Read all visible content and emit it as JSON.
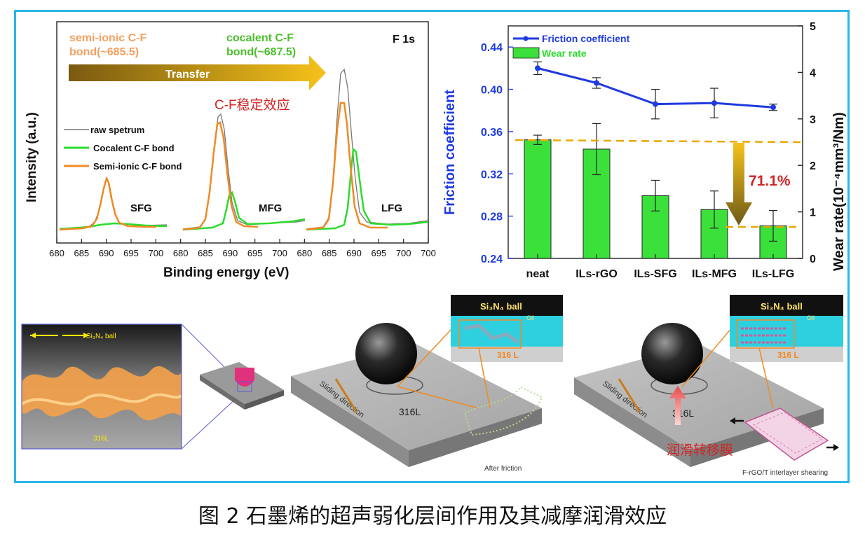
{
  "caption": "图 2 石墨烯的超声弱化层间作用及其减摩润滑效应",
  "colors": {
    "frame": "#29b6e3",
    "orange": "#f08a24",
    "green": "#2bdc2b",
    "blue": "#1f3be0",
    "red": "#d42424",
    "gold": "#e0a800"
  },
  "xps": {
    "title": "F 1s",
    "semi_ionic_label": "semi-ionic C-F",
    "semi_ionic_label2": "bond(~685.5)",
    "covalent_label": "cocalent C-F",
    "covalent_label2": "bond(~687.5)",
    "arrow_label": "Transfer",
    "effect_label": "C-F稳定效应",
    "legend": [
      "raw spetrum",
      "Cocalent C-F bond",
      "Semi-ionic C-F bond"
    ],
    "samples": [
      "SFG",
      "MFG",
      "LFG"
    ],
    "xlabel": "Binding energy (eV)",
    "ylabel": "Intensity (a.u.)",
    "ticks": [
      "680",
      "685",
      "690",
      "695",
      "700",
      "680",
      "685",
      "690",
      "695",
      "700",
      "680",
      "685",
      "690",
      "695",
      "700"
    ]
  },
  "chart_data": {
    "type": "bar",
    "categories": [
      "neat",
      "ILs-rGO",
      "ILs-SFG",
      "ILs-MFG",
      "ILs-LFG"
    ],
    "series": [
      {
        "name": "Friction coefficient",
        "type": "line",
        "values": [
          0.42,
          0.406,
          0.386,
          0.387,
          0.383
        ],
        "errors": [
          0.006,
          0.005,
          0.014,
          0.014,
          0.003
        ]
      },
      {
        "name": "Wear rate",
        "type": "bar",
        "values": [
          2.55,
          2.35,
          1.35,
          1.05,
          0.7
        ],
        "errors": [
          0.1,
          0.55,
          0.33,
          0.4,
          0.33
        ]
      }
    ],
    "ylabel": "Friction coefficient",
    "y2label": "Wear rate(10⁻⁴mm³/Nm)",
    "ylim": [
      0.24,
      0.46
    ],
    "y2lim": [
      0,
      5
    ],
    "yticks": [
      "0.24",
      "0.28",
      "0.32",
      "0.36",
      "0.40",
      "0.44"
    ],
    "y2ticks": [
      "0",
      "1",
      "2",
      "3",
      "4",
      "5"
    ],
    "annotation": "71.1%",
    "legend_position": "top-left"
  },
  "schematic": {
    "ball_label": "Si₃N₄ ball",
    "substrate_label": "316L",
    "substrate_label2": "316 L",
    "sliding_label": "Sliding direction",
    "after_friction": "After friction",
    "shearing_label": "F-rGO/T interlayer shearing",
    "film_label": "润滑转移膜",
    "oil_label": "Oil"
  }
}
